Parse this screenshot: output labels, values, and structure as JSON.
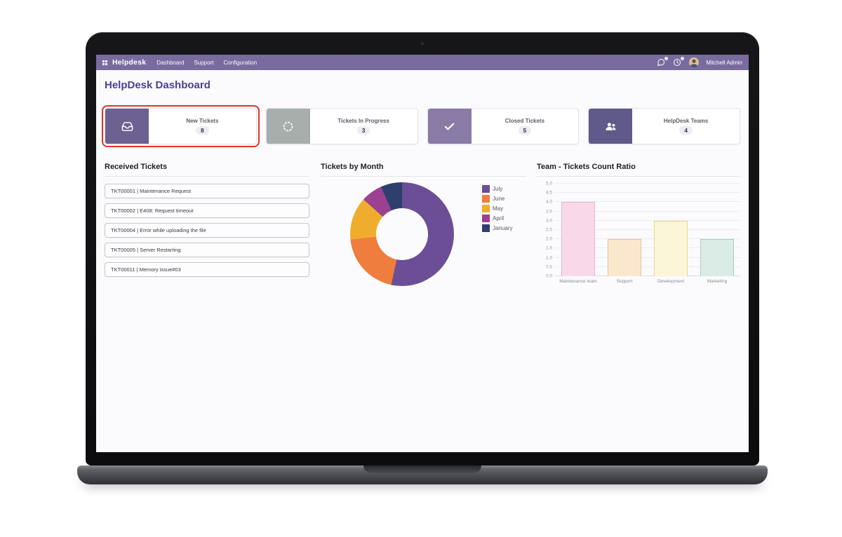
{
  "theme": {
    "navbar_bg": "#7a6b9f",
    "page_bg": "#fbfbfd",
    "title_color": "#4b4190",
    "highlight_border": "#e5312b"
  },
  "navbar": {
    "brand": "Helpdesk",
    "menu": [
      "Dashboard",
      "Support",
      "Configuration"
    ],
    "systray_icons": [
      "messages-icon",
      "activities-icon"
    ],
    "user": "Mitchell Admin"
  },
  "page": {
    "title": "HelpDesk Dashboard"
  },
  "cards": [
    {
      "label": "New Tickets",
      "value": "8",
      "icon": "inbox-icon",
      "icon_bg": "#6c6190",
      "highlighted": true
    },
    {
      "label": "Tickets In Progress",
      "value": "3",
      "icon": "spinner-icon",
      "icon_bg": "#a7aeab",
      "highlighted": false
    },
    {
      "label": "Closed Tickets",
      "value": "5",
      "icon": "check-icon",
      "icon_bg": "#8a7ba6",
      "highlighted": false
    },
    {
      "label": "HelpDesk Teams",
      "value": "4",
      "icon": "users-icon",
      "icon_bg": "#5f5a8a",
      "highlighted": false
    }
  ],
  "received": {
    "title": "Received Tickets",
    "items": [
      "TKT00001 | Maintenance Request",
      "TKT00002 | E408: Request timeout",
      "TKT00004 | Error while uploading the file",
      "TKT00005 | Server Restarting",
      "TKT00011 | Memory issue#03"
    ]
  },
  "chart_data": [
    {
      "type": "pie",
      "donut": true,
      "title": "Tickets by Month",
      "labels": [
        "July",
        "June",
        "May",
        "April",
        "January"
      ],
      "values": [
        8,
        3,
        2,
        1,
        1
      ],
      "colors": [
        "#6b4e96",
        "#ee7d3e",
        "#f0ad2d",
        "#9c4191",
        "#2d3f6d"
      ],
      "legend_position": "right"
    },
    {
      "type": "bar",
      "title": "Team - Tickets Count Ratio",
      "categories": [
        "Maintenance team",
        "Support",
        "Development",
        "Marketing"
      ],
      "values": [
        4,
        2,
        3,
        2
      ],
      "bar_colors": [
        "#f9d9e9",
        "#fbe7cd",
        "#fcf6d9",
        "#dbece7"
      ],
      "bar_borders": [
        "#eeaed1",
        "#edc089",
        "#e6d98b",
        "#a5cfc2"
      ],
      "ylim": [
        0,
        5
      ],
      "ytick_step": 0.5,
      "grid": true,
      "legend_position": "none"
    }
  ]
}
